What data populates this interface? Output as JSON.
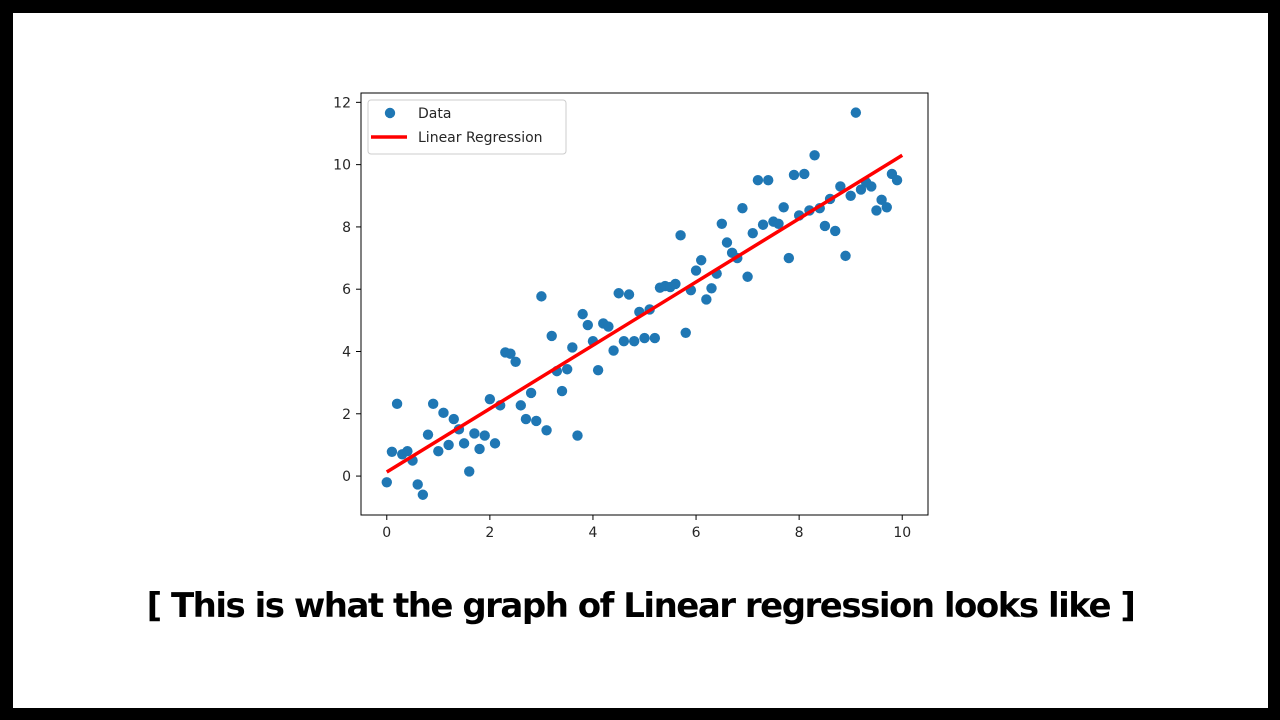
{
  "caption": "[ This is what the graph of Linear regression looks like ]",
  "chart_data": {
    "type": "scatter",
    "title": "",
    "xlabel": "",
    "ylabel": "",
    "xlim": [
      -0.5,
      10.5
    ],
    "ylim": [
      -1.25,
      12.3
    ],
    "xticks": [
      0,
      2,
      4,
      6,
      8,
      10
    ],
    "yticks": [
      0,
      2,
      4,
      6,
      8,
      10,
      12
    ],
    "grid": false,
    "legend_position": "top-left",
    "series": [
      {
        "name": "Data",
        "kind": "scatter",
        "color": "#1f77b4",
        "points": [
          [
            0.0,
            -0.2
          ],
          [
            0.1,
            0.78
          ],
          [
            0.2,
            2.32
          ],
          [
            0.3,
            0.7
          ],
          [
            0.4,
            0.8
          ],
          [
            0.5,
            0.5
          ],
          [
            0.6,
            -0.27
          ],
          [
            0.7,
            -0.6
          ],
          [
            0.8,
            1.33
          ],
          [
            0.9,
            2.32
          ],
          [
            1.0,
            0.8
          ],
          [
            1.1,
            2.03
          ],
          [
            1.2,
            1.0
          ],
          [
            1.3,
            1.83
          ],
          [
            1.4,
            1.5
          ],
          [
            1.5,
            1.05
          ],
          [
            1.6,
            0.15
          ],
          [
            1.7,
            1.37
          ],
          [
            1.8,
            0.87
          ],
          [
            1.9,
            1.3
          ],
          [
            2.0,
            2.47
          ],
          [
            2.1,
            1.05
          ],
          [
            2.2,
            2.27
          ],
          [
            2.3,
            3.97
          ],
          [
            2.4,
            3.93
          ],
          [
            2.5,
            3.67
          ],
          [
            2.6,
            2.27
          ],
          [
            2.7,
            1.83
          ],
          [
            2.8,
            2.67
          ],
          [
            2.9,
            1.77
          ],
          [
            3.0,
            5.77
          ],
          [
            3.1,
            1.47
          ],
          [
            3.2,
            4.5
          ],
          [
            3.3,
            3.37
          ],
          [
            3.4,
            2.73
          ],
          [
            3.5,
            3.43
          ],
          [
            3.6,
            4.13
          ],
          [
            3.7,
            1.3
          ],
          [
            3.8,
            5.2
          ],
          [
            3.9,
            4.85
          ],
          [
            4.0,
            4.33
          ],
          [
            4.1,
            3.4
          ],
          [
            4.2,
            4.9
          ],
          [
            4.3,
            4.8
          ],
          [
            4.4,
            4.03
          ],
          [
            4.5,
            5.87
          ],
          [
            4.6,
            4.33
          ],
          [
            4.7,
            5.83
          ],
          [
            4.8,
            4.33
          ],
          [
            4.9,
            5.27
          ],
          [
            5.0,
            4.43
          ],
          [
            5.1,
            5.35
          ],
          [
            5.2,
            4.43
          ],
          [
            5.3,
            6.05
          ],
          [
            5.4,
            6.1
          ],
          [
            5.5,
            6.07
          ],
          [
            5.6,
            6.17
          ],
          [
            5.7,
            7.73
          ],
          [
            5.8,
            4.6
          ],
          [
            5.9,
            5.97
          ],
          [
            6.0,
            6.6
          ],
          [
            6.1,
            6.93
          ],
          [
            6.2,
            5.67
          ],
          [
            6.3,
            6.03
          ],
          [
            6.4,
            6.5
          ],
          [
            6.5,
            8.1
          ],
          [
            6.6,
            7.5
          ],
          [
            6.7,
            7.17
          ],
          [
            6.8,
            7.0
          ],
          [
            6.9,
            8.6
          ],
          [
            7.0,
            6.4
          ],
          [
            7.1,
            7.8
          ],
          [
            7.2,
            9.5
          ],
          [
            7.3,
            8.07
          ],
          [
            7.4,
            9.5
          ],
          [
            7.5,
            8.17
          ],
          [
            7.6,
            8.1
          ],
          [
            7.7,
            8.63
          ],
          [
            7.8,
            7.0
          ],
          [
            7.9,
            9.67
          ],
          [
            8.0,
            8.37
          ],
          [
            8.1,
            9.7
          ],
          [
            8.2,
            8.53
          ],
          [
            8.3,
            10.3
          ],
          [
            8.4,
            8.6
          ],
          [
            8.5,
            8.03
          ],
          [
            8.6,
            8.9
          ],
          [
            8.7,
            7.87
          ],
          [
            8.8,
            9.3
          ],
          [
            8.9,
            7.07
          ],
          [
            9.0,
            9.0
          ],
          [
            9.1,
            11.67
          ],
          [
            9.2,
            9.2
          ],
          [
            9.3,
            9.43
          ],
          [
            9.4,
            9.3
          ],
          [
            9.5,
            8.53
          ],
          [
            9.6,
            8.87
          ],
          [
            9.7,
            8.63
          ],
          [
            9.8,
            9.7
          ],
          [
            9.9,
            9.5
          ]
        ]
      },
      {
        "name": "Linear Regression",
        "kind": "line",
        "color": "#ff0000",
        "points": [
          [
            0.0,
            0.13
          ],
          [
            10.0,
            10.3
          ]
        ]
      }
    ]
  }
}
